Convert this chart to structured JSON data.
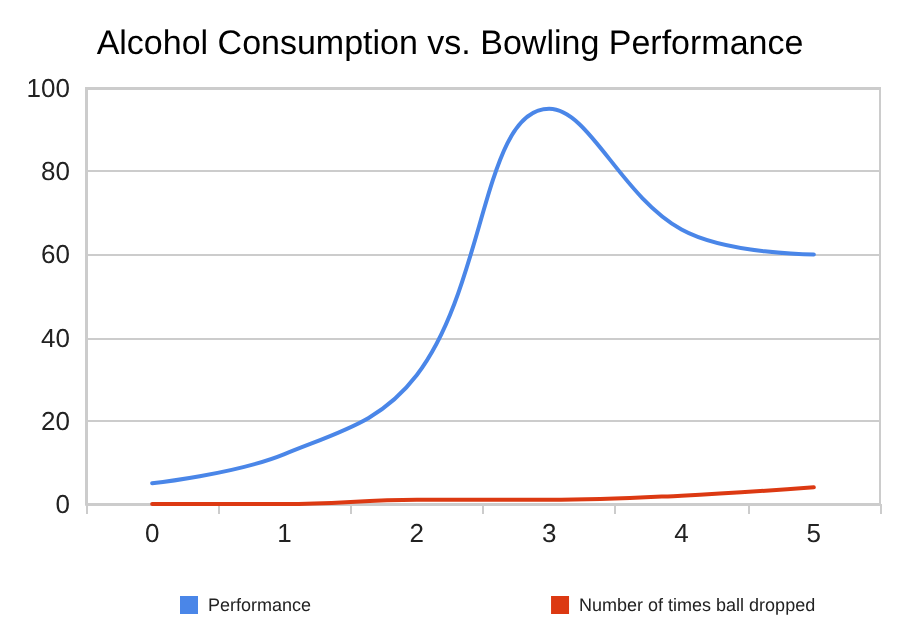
{
  "chart_data": {
    "type": "line",
    "title": "Alcohol Consumption vs. Bowling Performance",
    "categories": [
      "0",
      "1",
      "2",
      "3",
      "4",
      "5"
    ],
    "series": [
      {
        "name": "Performance",
        "color": "#4a86e8",
        "values": [
          5,
          12,
          31,
          95,
          66,
          60
        ]
      },
      {
        "name": "Number of times ball dropped",
        "color": "#dc3912",
        "values": [
          0,
          0,
          1,
          1,
          2,
          4
        ]
      }
    ],
    "ylim": [
      0,
      100
    ],
    "yticks": [
      0,
      20,
      40,
      60,
      80,
      100
    ],
    "grid": "y",
    "legend": "bottom",
    "marker": "none"
  }
}
